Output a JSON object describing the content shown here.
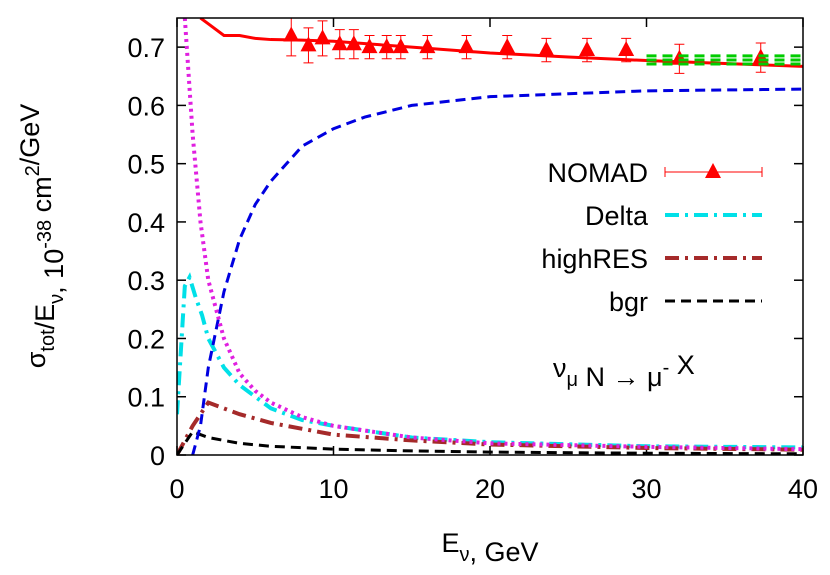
{
  "chart_data": {
    "type": "line",
    "x_label": [
      "E",
      "ν",
      ", GeV"
    ],
    "y_label": [
      "σ",
      "tot",
      "/E",
      "ν",
      ", 10",
      "-38",
      " cm",
      "2",
      "/GeV"
    ],
    "annotation": [
      "ν",
      "μ",
      " N → μ",
      "-",
      " X"
    ],
    "xlim": [
      0,
      40
    ],
    "ylim": [
      0,
      0.75
    ],
    "xticks": [
      0,
      10,
      20,
      30,
      40
    ],
    "yticks": [
      0,
      0.1,
      0.2,
      0.3,
      0.4,
      0.5,
      0.6,
      0.7
    ],
    "legend": "right",
    "series": [
      {
        "name": "NOMAD",
        "color": "#ff0000",
        "style": "points",
        "x": [
          7.3,
          8.4,
          9.3,
          10.4,
          11.3,
          12.3,
          13.4,
          14.3,
          16.0,
          18.5,
          21.1,
          23.6,
          26.2,
          28.7,
          32.1,
          37.3
        ],
        "values": [
          0.72,
          0.703,
          0.715,
          0.705,
          0.705,
          0.7,
          0.7,
          0.7,
          0.7,
          0.7,
          0.7,
          0.695,
          0.695,
          0.695,
          0.68,
          0.682
        ],
        "errors": [
          0.035,
          0.03,
          0.03,
          0.025,
          0.025,
          0.02,
          0.02,
          0.02,
          0.02,
          0.02,
          0.02,
          0.02,
          0.02,
          0.02,
          0.025,
          0.025
        ]
      },
      {
        "name": "Delta",
        "color": "#00e0e8",
        "style": "dash-dot",
        "x": [
          0,
          0.5,
          0.8,
          1.2,
          1.6,
          2,
          3,
          4,
          5,
          6,
          8,
          10,
          15,
          20,
          30,
          40
        ],
        "values": [
          0.07,
          0.29,
          0.305,
          0.27,
          0.24,
          0.2,
          0.15,
          0.12,
          0.1,
          0.08,
          0.06,
          0.05,
          0.03,
          0.022,
          0.015,
          0.013
        ]
      },
      {
        "name": "highRES",
        "color": "#a52a2a",
        "style": "dash-dot",
        "x": [
          0,
          1,
          2,
          3,
          4,
          6,
          8,
          10,
          15,
          20,
          30,
          40
        ],
        "values": [
          0,
          0.05,
          0.09,
          0.08,
          0.07,
          0.055,
          0.045,
          0.035,
          0.025,
          0.018,
          0.012,
          0.009
        ]
      },
      {
        "name": "bgr",
        "color": "#000000",
        "style": "dashed",
        "x": [
          0,
          0.5,
          1,
          2,
          3,
          4,
          6,
          10,
          15,
          20,
          30,
          40
        ],
        "values": [
          0,
          0.02,
          0.04,
          0.03,
          0.025,
          0.02,
          0.015,
          0.01,
          0.007,
          0.005,
          0.003,
          0.002
        ]
      },
      {
        "color": "#ff0000",
        "style": "solid",
        "x": [
          1.5,
          2,
          3,
          4,
          5,
          6,
          8,
          10,
          15,
          20,
          25,
          30,
          35,
          40
        ],
        "values": [
          0.75,
          0.74,
          0.72,
          0.72,
          0.715,
          0.713,
          0.712,
          0.71,
          0.7,
          0.69,
          0.683,
          0.677,
          0.672,
          0.667
        ]
      },
      {
        "color": "#0000e0",
        "style": "dashed",
        "x": [
          1,
          1.5,
          2,
          3,
          4,
          5,
          6,
          7,
          8,
          10,
          12,
          15,
          20,
          25,
          30,
          40
        ],
        "values": [
          0,
          0.05,
          0.15,
          0.28,
          0.37,
          0.43,
          0.47,
          0.5,
          0.53,
          0.56,
          0.58,
          0.6,
          0.615,
          0.62,
          0.625,
          0.628
        ]
      },
      {
        "color": "#e020e0",
        "style": "dotted",
        "x": [
          0.5,
          1,
          1.5,
          2,
          3,
          4,
          5,
          6,
          8,
          10,
          15,
          20,
          30,
          40
        ],
        "values": [
          0.75,
          0.55,
          0.4,
          0.3,
          0.2,
          0.14,
          0.11,
          0.09,
          0.065,
          0.05,
          0.03,
          0.02,
          0.014,
          0.01
        ]
      },
      {
        "color": "#00cc00",
        "style": "dashed",
        "x": [
          30,
          40
        ],
        "values": [
          0.685,
          0.685
        ]
      },
      {
        "color": "#00cc00",
        "style": "dashed",
        "x": [
          30,
          40
        ],
        "values": [
          0.678,
          0.678
        ]
      },
      {
        "color": "#00cc00",
        "style": "dashed",
        "x": [
          30,
          40
        ],
        "values": [
          0.671,
          0.671
        ]
      }
    ]
  }
}
